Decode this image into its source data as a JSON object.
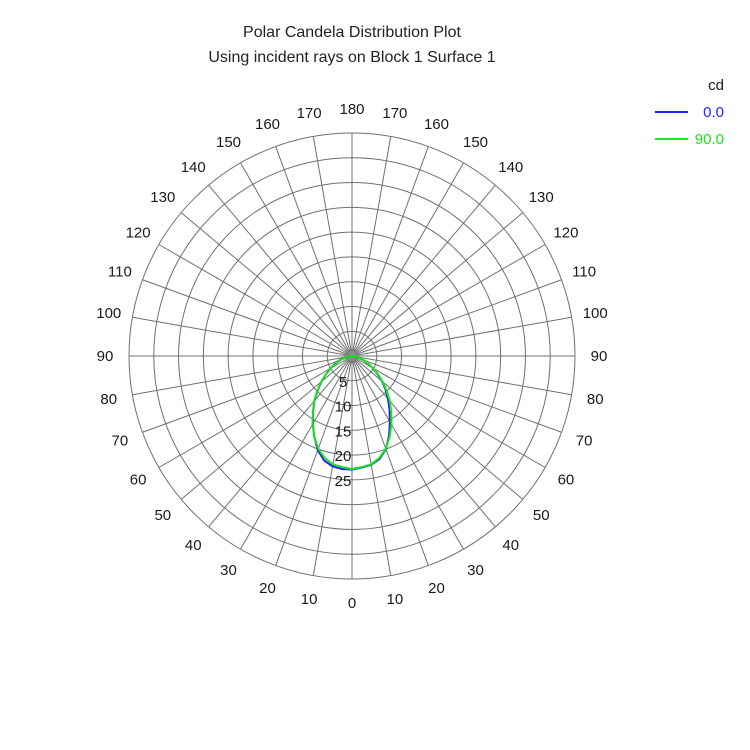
{
  "chart_data": {
    "type": "polar-line",
    "title": "Polar Candela Distribution Plot",
    "subtitle": "Using incident rays on Block 1 Surface 1",
    "radial": {
      "min": 0,
      "max": 45,
      "ring_step": 5,
      "tick_labels": [
        "5",
        "10",
        "15",
        "20",
        "25"
      ]
    },
    "angular": {
      "spoke_step_deg": 10,
      "zero_direction": "bottom",
      "labels": [
        {
          "text": "0",
          "angle": 0
        },
        {
          "text": "10",
          "angle": 10
        },
        {
          "text": "20",
          "angle": 20
        },
        {
          "text": "30",
          "angle": 30
        },
        {
          "text": "40",
          "angle": 40
        },
        {
          "text": "50",
          "angle": 50
        },
        {
          "text": "60",
          "angle": 60
        },
        {
          "text": "70",
          "angle": 70
        },
        {
          "text": "80",
          "angle": 80
        },
        {
          "text": "90",
          "angle": 90
        },
        {
          "text": "100",
          "angle": 100
        },
        {
          "text": "110",
          "angle": 110
        },
        {
          "text": "120",
          "angle": 120
        },
        {
          "text": "130",
          "angle": 130
        },
        {
          "text": "140",
          "angle": 140
        },
        {
          "text": "150",
          "angle": 150
        },
        {
          "text": "160",
          "angle": 160
        },
        {
          "text": "170",
          "angle": 170
        },
        {
          "text": "180",
          "angle": 180
        },
        {
          "text": "170",
          "angle": -170
        },
        {
          "text": "160",
          "angle": -160
        },
        {
          "text": "150",
          "angle": -150
        },
        {
          "text": "140",
          "angle": -140
        },
        {
          "text": "130",
          "angle": -130
        },
        {
          "text": "120",
          "angle": -120
        },
        {
          "text": "110",
          "angle": -110
        },
        {
          "text": "100",
          "angle": -100
        },
        {
          "text": "90",
          "angle": -90
        },
        {
          "text": "80",
          "angle": -80
        },
        {
          "text": "70",
          "angle": -70
        },
        {
          "text": "60",
          "angle": -60
        },
        {
          "text": "50",
          "angle": -50
        },
        {
          "text": "40",
          "angle": -40
        },
        {
          "text": "30",
          "angle": -30
        },
        {
          "text": "20",
          "angle": -20
        },
        {
          "text": "10",
          "angle": -10
        }
      ]
    },
    "legend": {
      "title": "cd",
      "position": "top-right"
    },
    "series": [
      {
        "name": "0.0",
        "color": "#1f1fff",
        "points": [
          {
            "angle": 0,
            "value": 22.9
          },
          {
            "angle": 5,
            "value": 22.6
          },
          {
            "angle": 10,
            "value": 22.3
          },
          {
            "angle": 15,
            "value": 21.5
          },
          {
            "angle": 20,
            "value": 20.0
          },
          {
            "angle": 25,
            "value": 17.7
          },
          {
            "angle": 30,
            "value": 15.3
          },
          {
            "angle": 35,
            "value": 13.2
          },
          {
            "angle": 40,
            "value": 11.3
          },
          {
            "angle": 45,
            "value": 9.6
          },
          {
            "angle": 50,
            "value": 7.9
          },
          {
            "angle": 55,
            "value": 6.2
          },
          {
            "angle": 60,
            "value": 4.7
          },
          {
            "angle": 65,
            "value": 3.5
          },
          {
            "angle": 70,
            "value": 2.5
          },
          {
            "angle": 75,
            "value": 1.7
          },
          {
            "angle": 80,
            "value": 1.1
          },
          {
            "angle": 85,
            "value": 0.5
          },
          {
            "angle": 90,
            "value": 0
          },
          {
            "angle": -85,
            "value": 0.5
          },
          {
            "angle": -80,
            "value": 1.2
          },
          {
            "angle": -75,
            "value": 1.9
          },
          {
            "angle": -70,
            "value": 2.8
          },
          {
            "angle": -65,
            "value": 3.8
          },
          {
            "angle": -60,
            "value": 5.0
          },
          {
            "angle": -55,
            "value": 6.4
          },
          {
            "angle": -50,
            "value": 8.0
          },
          {
            "angle": -45,
            "value": 9.8
          },
          {
            "angle": -40,
            "value": 11.8
          },
          {
            "angle": -35,
            "value": 13.7
          },
          {
            "angle": -30,
            "value": 15.8
          },
          {
            "angle": -25,
            "value": 18.0
          },
          {
            "angle": -20,
            "value": 20.2
          },
          {
            "angle": -15,
            "value": 21.8
          },
          {
            "angle": -10,
            "value": 22.6
          },
          {
            "angle": -5,
            "value": 22.9
          },
          {
            "angle": 0,
            "value": 22.9
          }
        ]
      },
      {
        "name": "90.0",
        "color": "#19e619",
        "points": [
          {
            "angle": 0,
            "value": 22.8
          },
          {
            "angle": 5,
            "value": 22.5
          },
          {
            "angle": 10,
            "value": 22.2
          },
          {
            "angle": 15,
            "value": 21.3
          },
          {
            "angle": 20,
            "value": 19.9
          },
          {
            "angle": 25,
            "value": 18.0
          },
          {
            "angle": 30,
            "value": 15.9
          },
          {
            "angle": 35,
            "value": 13.8
          },
          {
            "angle": 40,
            "value": 11.9
          },
          {
            "angle": 45,
            "value": 9.9
          },
          {
            "angle": 50,
            "value": 8.1
          },
          {
            "angle": 55,
            "value": 6.4
          },
          {
            "angle": 60,
            "value": 4.9
          },
          {
            "angle": 65,
            "value": 3.6
          },
          {
            "angle": 70,
            "value": 2.6
          },
          {
            "angle": 75,
            "value": 1.8
          },
          {
            "angle": 80,
            "value": 1.1
          },
          {
            "angle": 85,
            "value": 0.5
          },
          {
            "angle": 90,
            "value": 0
          },
          {
            "angle": -85,
            "value": 0.5
          },
          {
            "angle": -80,
            "value": 1.1
          },
          {
            "angle": -75,
            "value": 1.8
          },
          {
            "angle": -70,
            "value": 2.6
          },
          {
            "angle": -65,
            "value": 3.6
          },
          {
            "angle": -60,
            "value": 4.9
          },
          {
            "angle": -55,
            "value": 6.4
          },
          {
            "angle": -50,
            "value": 8.1
          },
          {
            "angle": -45,
            "value": 9.9
          },
          {
            "angle": -40,
            "value": 11.9
          },
          {
            "angle": -35,
            "value": 13.8
          },
          {
            "angle": -30,
            "value": 15.9
          },
          {
            "angle": -25,
            "value": 18.0
          },
          {
            "angle": -20,
            "value": 19.9
          },
          {
            "angle": -15,
            "value": 21.3
          },
          {
            "angle": -10,
            "value": 22.2
          },
          {
            "angle": -5,
            "value": 22.5
          },
          {
            "angle": 0,
            "value": 22.8
          }
        ]
      }
    ]
  }
}
